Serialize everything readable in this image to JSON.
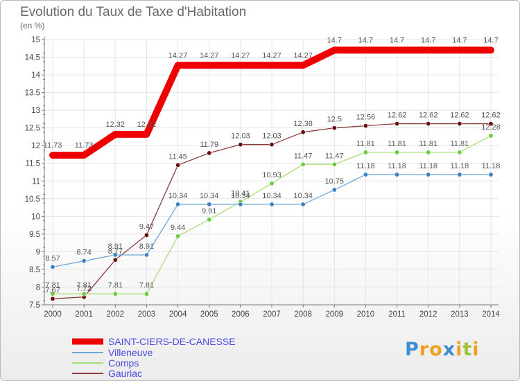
{
  "chart_data": {
    "type": "line",
    "title": "Evolution du Taux de Taxe d'Habitation",
    "subtitle": "(en %)",
    "x": [
      "2000",
      "2001",
      "2002",
      "2003",
      "2004",
      "2005",
      "2006",
      "2007",
      "2008",
      "2009",
      "2010",
      "2011",
      "2012",
      "2013",
      "2014"
    ],
    "y_ticks": [
      "7.5",
      "8",
      "8.5",
      "9",
      "9.5",
      "10",
      "10.5",
      "11",
      "11.5",
      "12",
      "12.5",
      "13",
      "13.5",
      "14",
      "14.5",
      "15"
    ],
    "ylim": [
      7.5,
      15
    ],
    "series": [
      {
        "name": "SAINT-CIERS-DE-CANESSE",
        "color": "#ee0000",
        "values": [
          11.73,
          11.73,
          12.32,
          12.32,
          14.27,
          14.27,
          14.27,
          14.27,
          14.27,
          14.7,
          14.7,
          14.7,
          14.7,
          14.7,
          14.7
        ],
        "labels": [
          "11.73",
          "11.73",
          "12.32",
          "12.32",
          "14.27",
          "14.27",
          "14.27",
          "14.27",
          "14.27",
          "14.7",
          "14.7",
          "14.7",
          "14.7",
          "14.7",
          "14.7"
        ]
      },
      {
        "name": "Villeneuve",
        "color": "#6fa8d6",
        "marker": "#3d80c4",
        "values": [
          8.57,
          8.74,
          8.91,
          8.91,
          10.34,
          10.34,
          10.34,
          10.34,
          10.34,
          10.75,
          11.18,
          11.18,
          11.18,
          11.18,
          11.18
        ],
        "labels": [
          "8.57",
          "8.74",
          "8.91",
          "8.91",
          "10.34",
          "10.34",
          "10.34",
          "10.34",
          "10.34",
          "10.75",
          "11.18",
          "11.18",
          "11.18",
          "11.18",
          "11.18"
        ]
      },
      {
        "name": "Comps",
        "color": "#a8e07a",
        "marker": "#6ccb3a",
        "values": [
          7.81,
          7.81,
          7.81,
          7.81,
          9.44,
          9.91,
          10.41,
          10.93,
          11.47,
          11.47,
          11.81,
          11.81,
          11.81,
          11.81,
          12.28
        ],
        "labels": [
          "7.81",
          "7.81",
          "7.81",
          "7.81",
          "9.44",
          "9.91",
          "10.41",
          "10.93",
          "11.47",
          "11.47",
          "11.81",
          "11.81",
          "11.81",
          "11.81",
          "12.28"
        ]
      },
      {
        "name": "Gauriac",
        "color": "#8a3a3a",
        "marker": "#6a1010",
        "values": [
          7.67,
          7.72,
          8.77,
          9.47,
          11.45,
          11.79,
          12.03,
          12.03,
          12.38,
          12.5,
          12.56,
          12.62,
          12.62,
          12.62,
          12.62
        ],
        "labels": [
          "7.67",
          "7.72",
          "8.77",
          "9.47",
          "11.45",
          "11.79",
          "12.03",
          "12.03",
          "12.38",
          "12.5",
          "12.56",
          "12.62",
          "12.62",
          "12.62",
          "12.62"
        ]
      }
    ]
  },
  "brand": {
    "letters": [
      "P",
      "r",
      "o",
      "x",
      "i",
      "t",
      "i"
    ],
    "colors": [
      "#3b8fd0",
      "#f0a020",
      "#f0a020",
      "#3b8fd0",
      "#f0a020",
      "#9ac23c",
      "#f0a020"
    ]
  }
}
